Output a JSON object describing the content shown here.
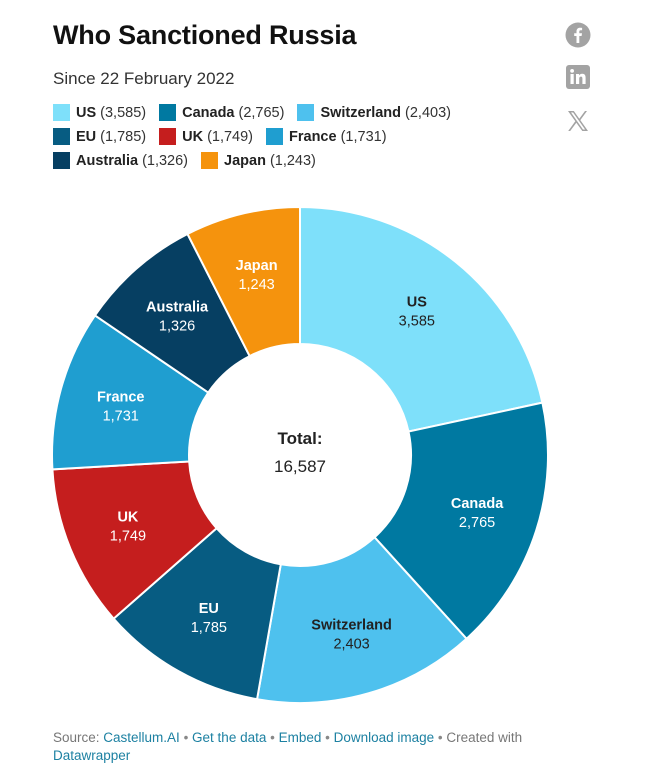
{
  "header": {
    "title": "Who Sanctioned Russia",
    "subtitle": "Since 22 February 2022"
  },
  "share_icons": [
    "facebook-icon",
    "linkedin-icon",
    "x-icon"
  ],
  "legend_rows": [
    [
      {
        "name": "US",
        "value": "(3,585)",
        "color": "#7ee0fa"
      },
      {
        "name": "Canada",
        "value": "(2,765)",
        "color": "#0079a1"
      },
      {
        "name": "Switzerland",
        "value": "(2,403)",
        "color": "#4ec1ee"
      }
    ],
    [
      {
        "name": "EU",
        "value": "(1,785)",
        "color": "#075c82"
      },
      {
        "name": "UK",
        "value": "(1,749)",
        "color": "#c51e1e"
      },
      {
        "name": "France",
        "value": "(1,731)",
        "color": "#1f9ed0"
      }
    ],
    [
      {
        "name": "Australia",
        "value": "(1,326)",
        "color": "#063f62"
      },
      {
        "name": "Japan",
        "value": "(1,243)",
        "color": "#f5930d"
      }
    ]
  ],
  "chart_data": {
    "type": "pie",
    "variant": "donut",
    "categories": [
      "US",
      "Canada",
      "Switzerland",
      "EU",
      "UK",
      "France",
      "Australia",
      "Japan"
    ],
    "values": [
      3585,
      2765,
      2403,
      1785,
      1749,
      1731,
      1326,
      1243
    ],
    "value_labels": [
      "3,585",
      "2,765",
      "2,403",
      "1,785",
      "1,749",
      "1,731",
      "1,326",
      "1,243"
    ],
    "colors": [
      "#7ee0fa",
      "#0079a1",
      "#4ec1ee",
      "#075c82",
      "#c51e1e",
      "#1f9ed0",
      "#063f62",
      "#f5930d"
    ],
    "label_colors": [
      "#222222",
      "#ffffff",
      "#222222",
      "#ffffff",
      "#ffffff",
      "#ffffff",
      "#ffffff",
      "#ffffff"
    ],
    "center_label": "Total:",
    "center_value": "16,587",
    "title": "Who Sanctioned Russia",
    "subtitle": "Since 22 February 2022",
    "legend_position": "top-left"
  },
  "footer": {
    "source_prefix": "Source: ",
    "source_link": "Castellum.AI",
    "sep": " • ",
    "get_data": "Get the data",
    "embed": "Embed",
    "download": "Download image",
    "created_with": "Created with",
    "tool_link": "Datawrapper"
  }
}
